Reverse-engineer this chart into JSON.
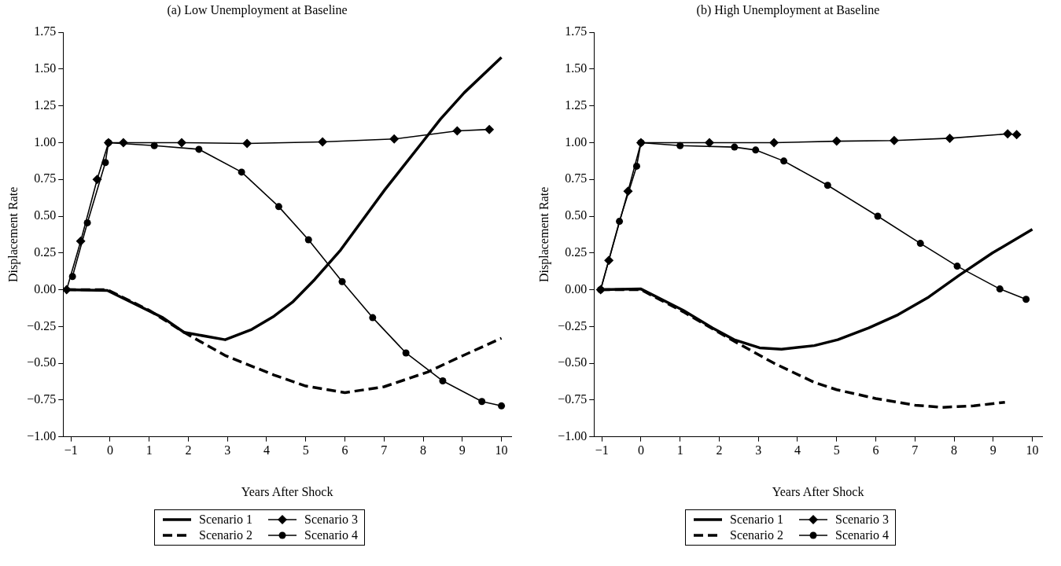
{
  "chart_data": [
    {
      "type": "line",
      "title": "(a) Low Unemployment at Baseline",
      "xlabel": "Years After Shock",
      "ylabel": "Displacement Rate",
      "xlim": [
        -1.2,
        10.25
      ],
      "xticks": [
        {
          "value": -1,
          "label": "−1"
        },
        0,
        1,
        2,
        3,
        4,
        5,
        6,
        7,
        8,
        9,
        10
      ],
      "ylim": [
        -1,
        1.75
      ],
      "yticks": [
        {
          "value": -1,
          "label": "−1.00"
        },
        {
          "value": -0.75,
          "label": "−0.75"
        },
        {
          "value": -0.5,
          "label": "−0.50"
        },
        {
          "value": -0.25,
          "label": "−0.25"
        },
        {
          "value": 0,
          "label": "0.00"
        },
        {
          "value": 0.25,
          "label": "0.25"
        },
        {
          "value": 0.5,
          "label": "0.50"
        },
        {
          "value": 0.75,
          "label": "0.75"
        },
        {
          "value": 1,
          "label": "1.00"
        },
        {
          "value": 1.25,
          "label": "1.25"
        },
        {
          "value": 1.5,
          "label": "1.50"
        },
        {
          "value": 1.75,
          "label": "1.75"
        }
      ],
      "grid": false,
      "legend": "bottom",
      "series": [
        {
          "name": "Scenario 1",
          "color": "#000000",
          "line_style": "solid",
          "marker": "none",
          "x": [
            -1.11,
            -0.07,
            1.35,
            1.89,
            2.94,
            3.62,
            4.19,
            4.66,
            5.23,
            5.89,
            7.02,
            7.97,
            8.44,
            9.05,
            10.0
          ],
          "values": [
            0,
            -0.005,
            -0.19,
            -0.29,
            -0.34,
            -0.27,
            -0.18,
            -0.085,
            0.07,
            0.27,
            0.68,
            1.0,
            1.16,
            1.34,
            1.58
          ]
        },
        {
          "name": "Scenario 2",
          "color": "#000000",
          "line_style": "dashed",
          "marker": "none",
          "x": [
            -1.11,
            -0.07,
            1.0,
            1.89,
            2.96,
            4.19,
            5.0,
            6.0,
            7.0,
            8.11,
            9.0,
            10.0
          ],
          "values": [
            0,
            0,
            -0.14,
            -0.29,
            -0.45,
            -0.58,
            -0.655,
            -0.7,
            -0.66,
            -0.56,
            -0.45,
            -0.33
          ]
        },
        {
          "name": "Scenario 3",
          "color": "#000000",
          "line_style": "solid",
          "marker": "diamond",
          "x": [
            -1.11,
            -0.75,
            -0.33,
            -0.04,
            0.34,
            1.83,
            3.5,
            5.43,
            7.26,
            8.87,
            9.69
          ],
          "values": [
            0,
            0.33,
            0.75,
            1.0,
            1.0,
            1.0,
            0.995,
            1.005,
            1.025,
            1.08,
            1.09
          ]
        },
        {
          "name": "Scenario 4",
          "color": "#000000",
          "line_style": "solid",
          "marker": "circle",
          "x": [
            -0.96,
            -0.58,
            -0.12,
            -0.04,
            1.13,
            2.27,
            3.36,
            4.31,
            5.07,
            5.93,
            6.71,
            7.56,
            8.5,
            9.5,
            10.0
          ],
          "values": [
            0.09,
            0.455,
            0.865,
            1.0,
            0.98,
            0.955,
            0.8,
            0.565,
            0.34,
            0.055,
            -0.19,
            -0.43,
            -0.62,
            -0.76,
            -0.79
          ]
        }
      ]
    },
    {
      "type": "line",
      "title": "(b) High Unemployment at Baseline",
      "xlabel": "Years After Shock",
      "ylabel": "Displacement Rate",
      "xlim": [
        -1.2,
        10.25
      ],
      "xticks": [
        {
          "value": -1,
          "label": "−1"
        },
        0,
        1,
        2,
        3,
        4,
        5,
        6,
        7,
        8,
        9,
        10
      ],
      "ylim": [
        -1,
        1.75
      ],
      "yticks": [
        {
          "value": -1,
          "label": "−1.00"
        },
        {
          "value": -0.75,
          "label": "−0.75"
        },
        {
          "value": -0.5,
          "label": "−0.50"
        },
        {
          "value": -0.25,
          "label": "−0.25"
        },
        {
          "value": 0,
          "label": "0.00"
        },
        {
          "value": 0.25,
          "label": "0.25"
        },
        {
          "value": 0.5,
          "label": "0.50"
        },
        {
          "value": 0.75,
          "label": "0.75"
        },
        {
          "value": 1,
          "label": "1.00"
        },
        {
          "value": 1.25,
          "label": "1.25"
        },
        {
          "value": 1.5,
          "label": "1.50"
        },
        {
          "value": 1.75,
          "label": "1.75"
        }
      ],
      "grid": false,
      "legend": "bottom",
      "series": [
        {
          "name": "Scenario 1",
          "color": "#000000",
          "line_style": "solid",
          "marker": "none",
          "x": [
            -1.03,
            0.0,
            1.08,
            1.83,
            2.38,
            3.03,
            3.59,
            4.43,
            5.03,
            5.82,
            6.57,
            7.35,
            8.14,
            8.98,
            10.0
          ],
          "values": [
            0,
            0.005,
            -0.14,
            -0.26,
            -0.34,
            -0.395,
            -0.405,
            -0.38,
            -0.34,
            -0.26,
            -0.17,
            -0.05,
            0.1,
            0.25,
            0.41
          ]
        },
        {
          "name": "Scenario 2",
          "color": "#000000",
          "line_style": "dashed",
          "marker": "none",
          "x": [
            -1.03,
            0.0,
            1.08,
            2.38,
            3.4,
            4.43,
            5.0,
            6.0,
            7.0,
            7.7,
            8.5,
            9.3
          ],
          "values": [
            0,
            0,
            -0.15,
            -0.35,
            -0.5,
            -0.63,
            -0.68,
            -0.74,
            -0.785,
            -0.8,
            -0.79,
            -0.765
          ]
        },
        {
          "name": "Scenario 3",
          "color": "#000000",
          "line_style": "solid",
          "marker": "diamond",
          "x": [
            -1.03,
            -0.82,
            -0.33,
            0.0,
            1.75,
            3.4,
            5.0,
            6.47,
            7.89,
            9.37,
            9.6
          ],
          "values": [
            0,
            0.2,
            0.67,
            1.0,
            1.0,
            1.0,
            1.01,
            1.015,
            1.03,
            1.06,
            1.055
          ]
        },
        {
          "name": "Scenario 4",
          "color": "#000000",
          "line_style": "solid",
          "marker": "circle",
          "x": [
            -1.03,
            -0.55,
            -0.11,
            0.0,
            1.0,
            2.39,
            2.93,
            3.65,
            4.77,
            6.05,
            7.14,
            8.08,
            9.17,
            9.84
          ],
          "values": [
            0,
            0.465,
            0.84,
            1.0,
            0.98,
            0.97,
            0.95,
            0.875,
            0.71,
            0.5,
            0.315,
            0.16,
            0.005,
            -0.065
          ]
        }
      ]
    }
  ]
}
